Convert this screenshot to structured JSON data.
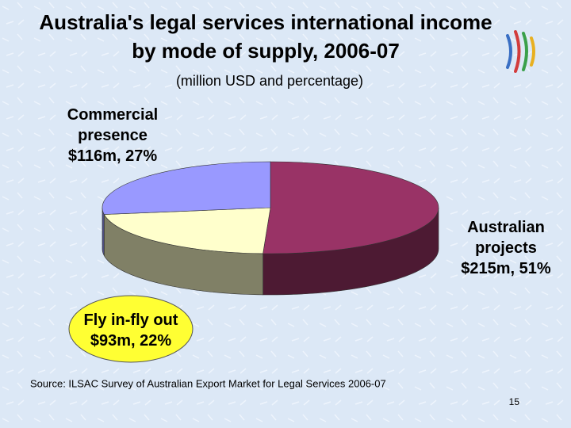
{
  "chart_data": {
    "type": "pie3d",
    "title": "Australia's legal services international income  by mode of supply, 2006-07",
    "subtitle": "(million USD and percentage)",
    "categories": [
      "Australian projects",
      "Fly in-fly out",
      "Commercial presence"
    ],
    "values": [
      215,
      93,
      116
    ],
    "value_labels": [
      "$215m, 51%",
      "$93m, 22%",
      "$116m, 27%"
    ],
    "colors": [
      "#993366",
      "#ffffcc",
      "#9999ff"
    ],
    "side_colors": [
      "#4d1a33",
      "#808066",
      "#4d4d80"
    ],
    "source": "Source: ILSAC Survey of Australian Export Market for Legal Services 2006-07",
    "page_number": "15"
  }
}
